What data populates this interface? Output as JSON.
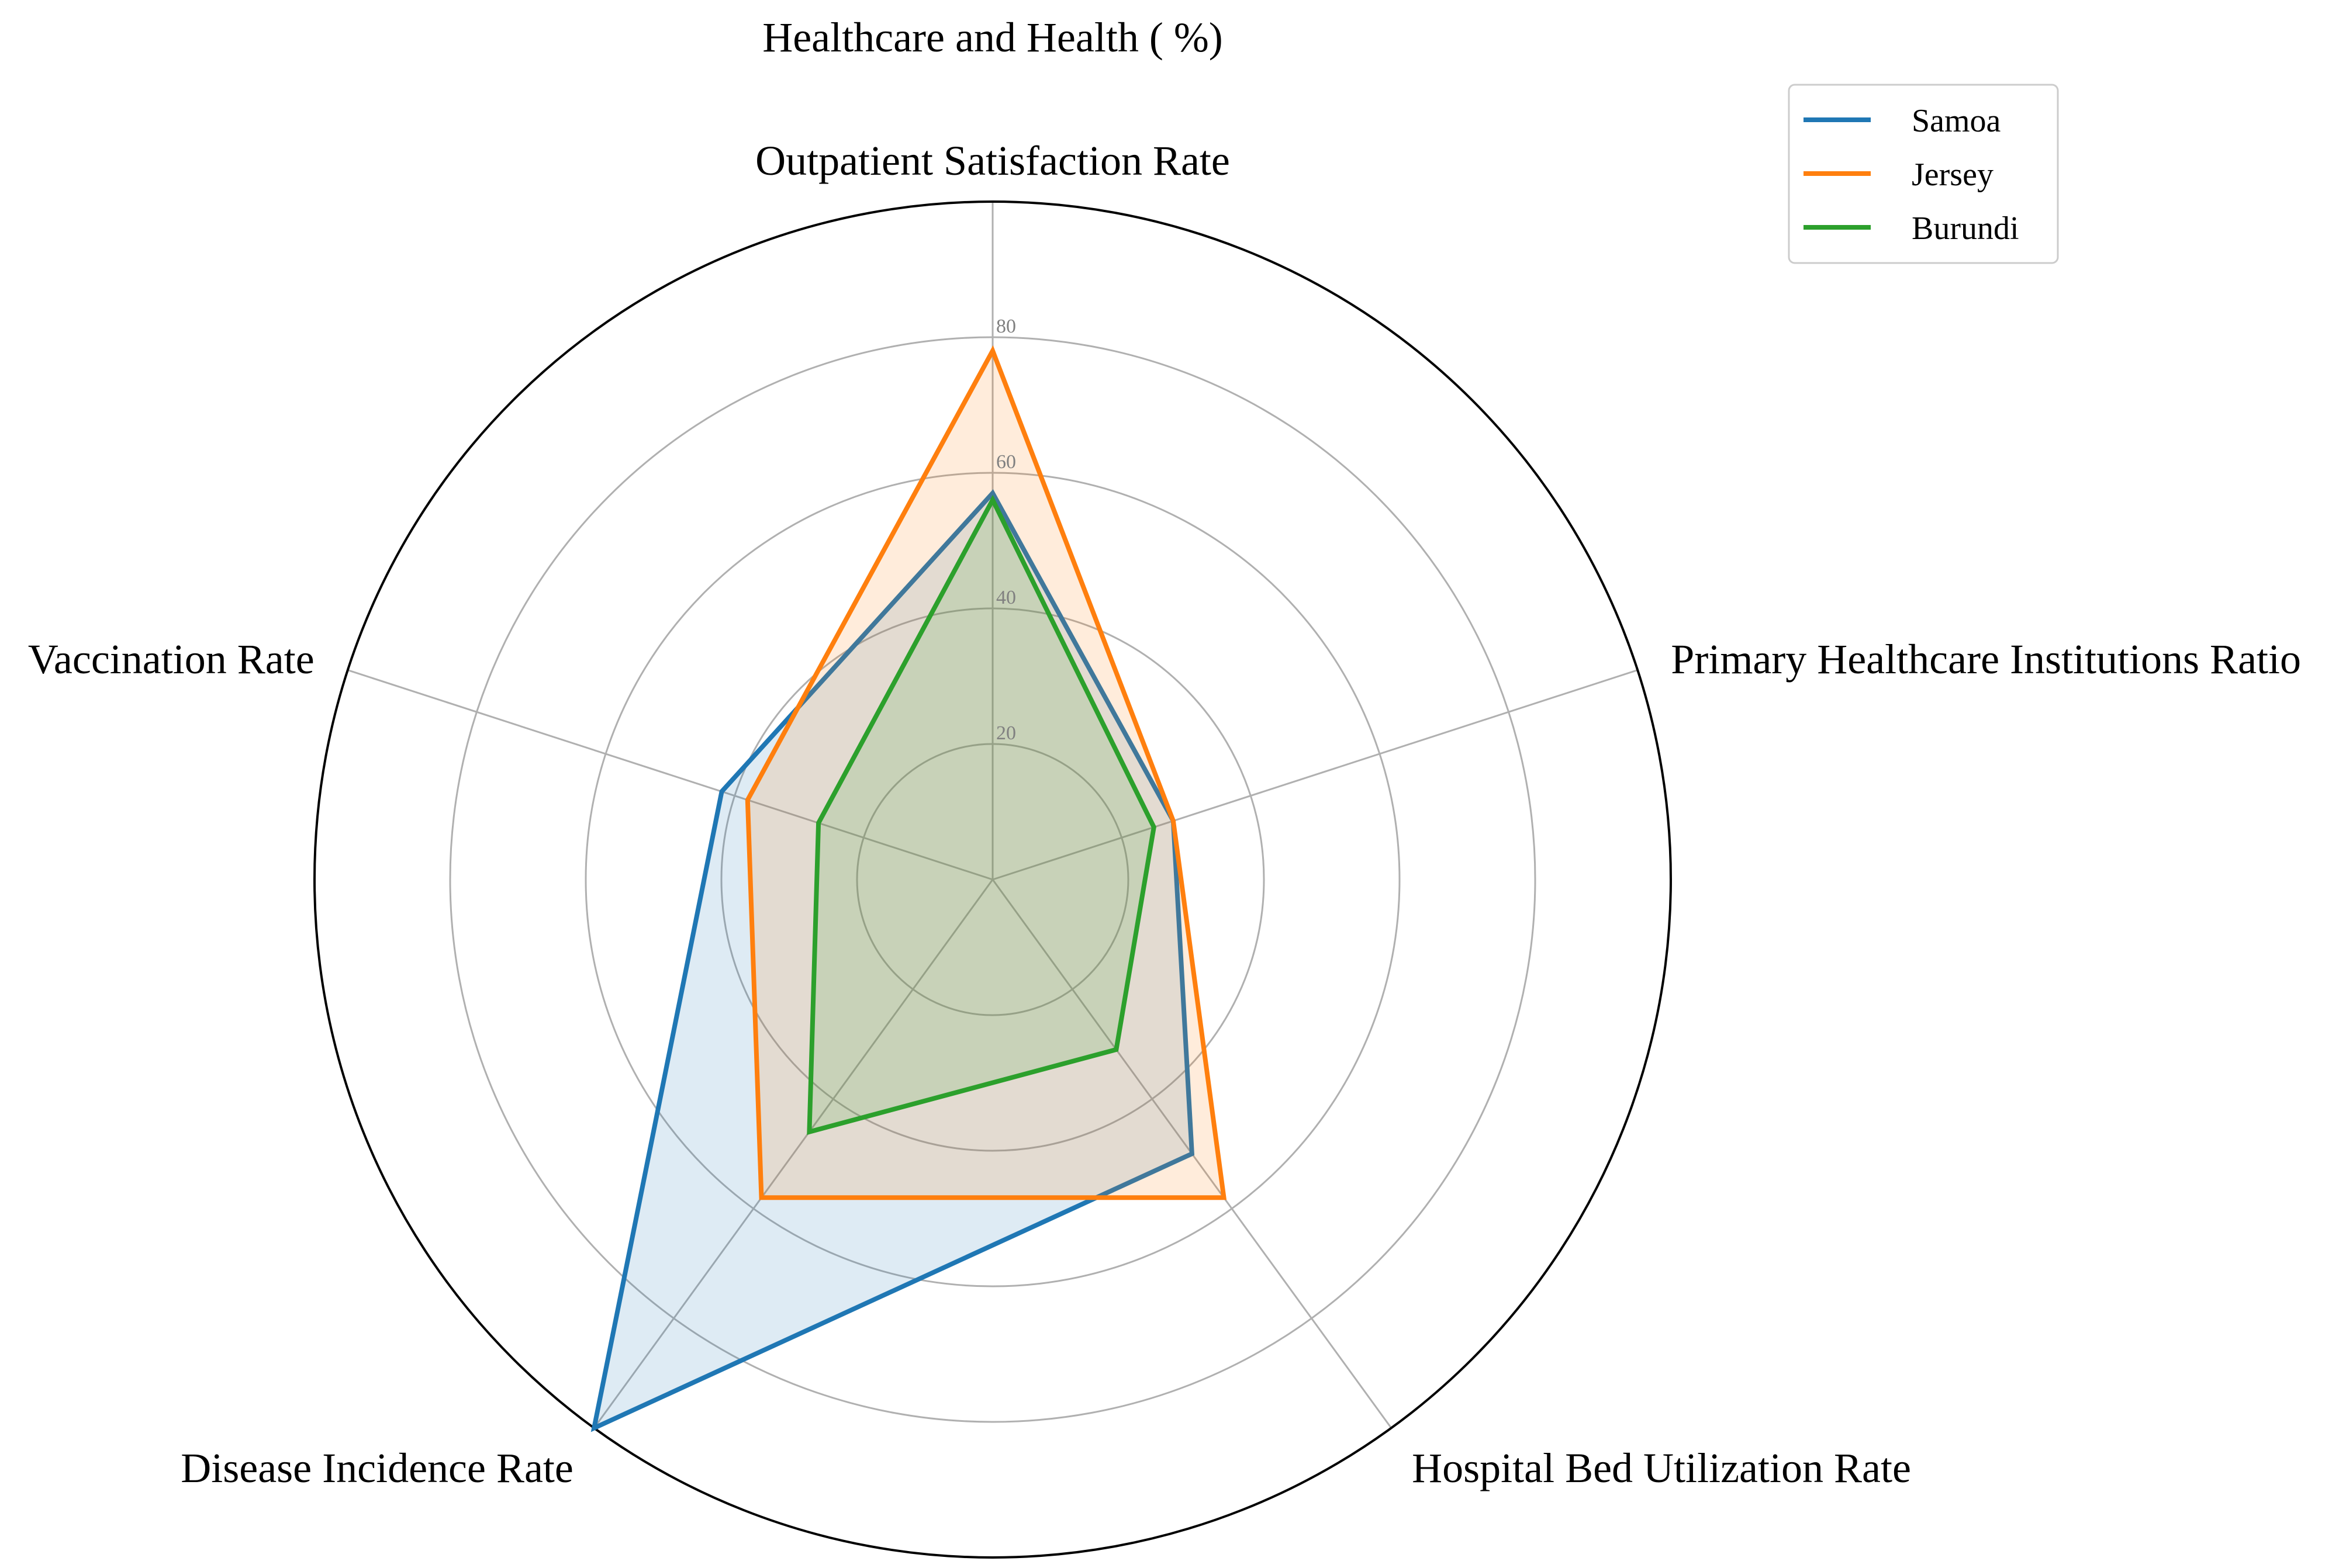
{
  "chart_data": {
    "type": "radar",
    "title": "Healthcare and Health ( %)",
    "axes": [
      "Outpatient Satisfaction Rate",
      "Primary Healthcare Institutions Ratio",
      "Hospital Bed Utilization Rate",
      "Disease Incidence Rate",
      "Vaccination Rate"
    ],
    "rlim": [
      0,
      100
    ],
    "r_ticks": [
      20,
      40,
      60,
      80
    ],
    "r_tick_labels": [
      "20",
      "40",
      "60",
      "80"
    ],
    "grid": true,
    "legend_position": "top-right",
    "series": [
      {
        "name": "Samoa",
        "values": [
          57,
          28,
          50,
          100,
          42
        ]
      },
      {
        "name": "Jersey",
        "values": [
          78,
          28,
          58,
          58,
          38
        ]
      },
      {
        "name": "Burundi",
        "values": [
          56,
          25,
          31,
          46,
          27
        ]
      }
    ]
  },
  "colors": {
    "Samoa": "#1f77b4",
    "Jersey": "#ff7f0e",
    "Burundi": "#2ca02c",
    "grid": "#b0b0b0",
    "frame": "#000000",
    "tick_label": "#808080"
  }
}
